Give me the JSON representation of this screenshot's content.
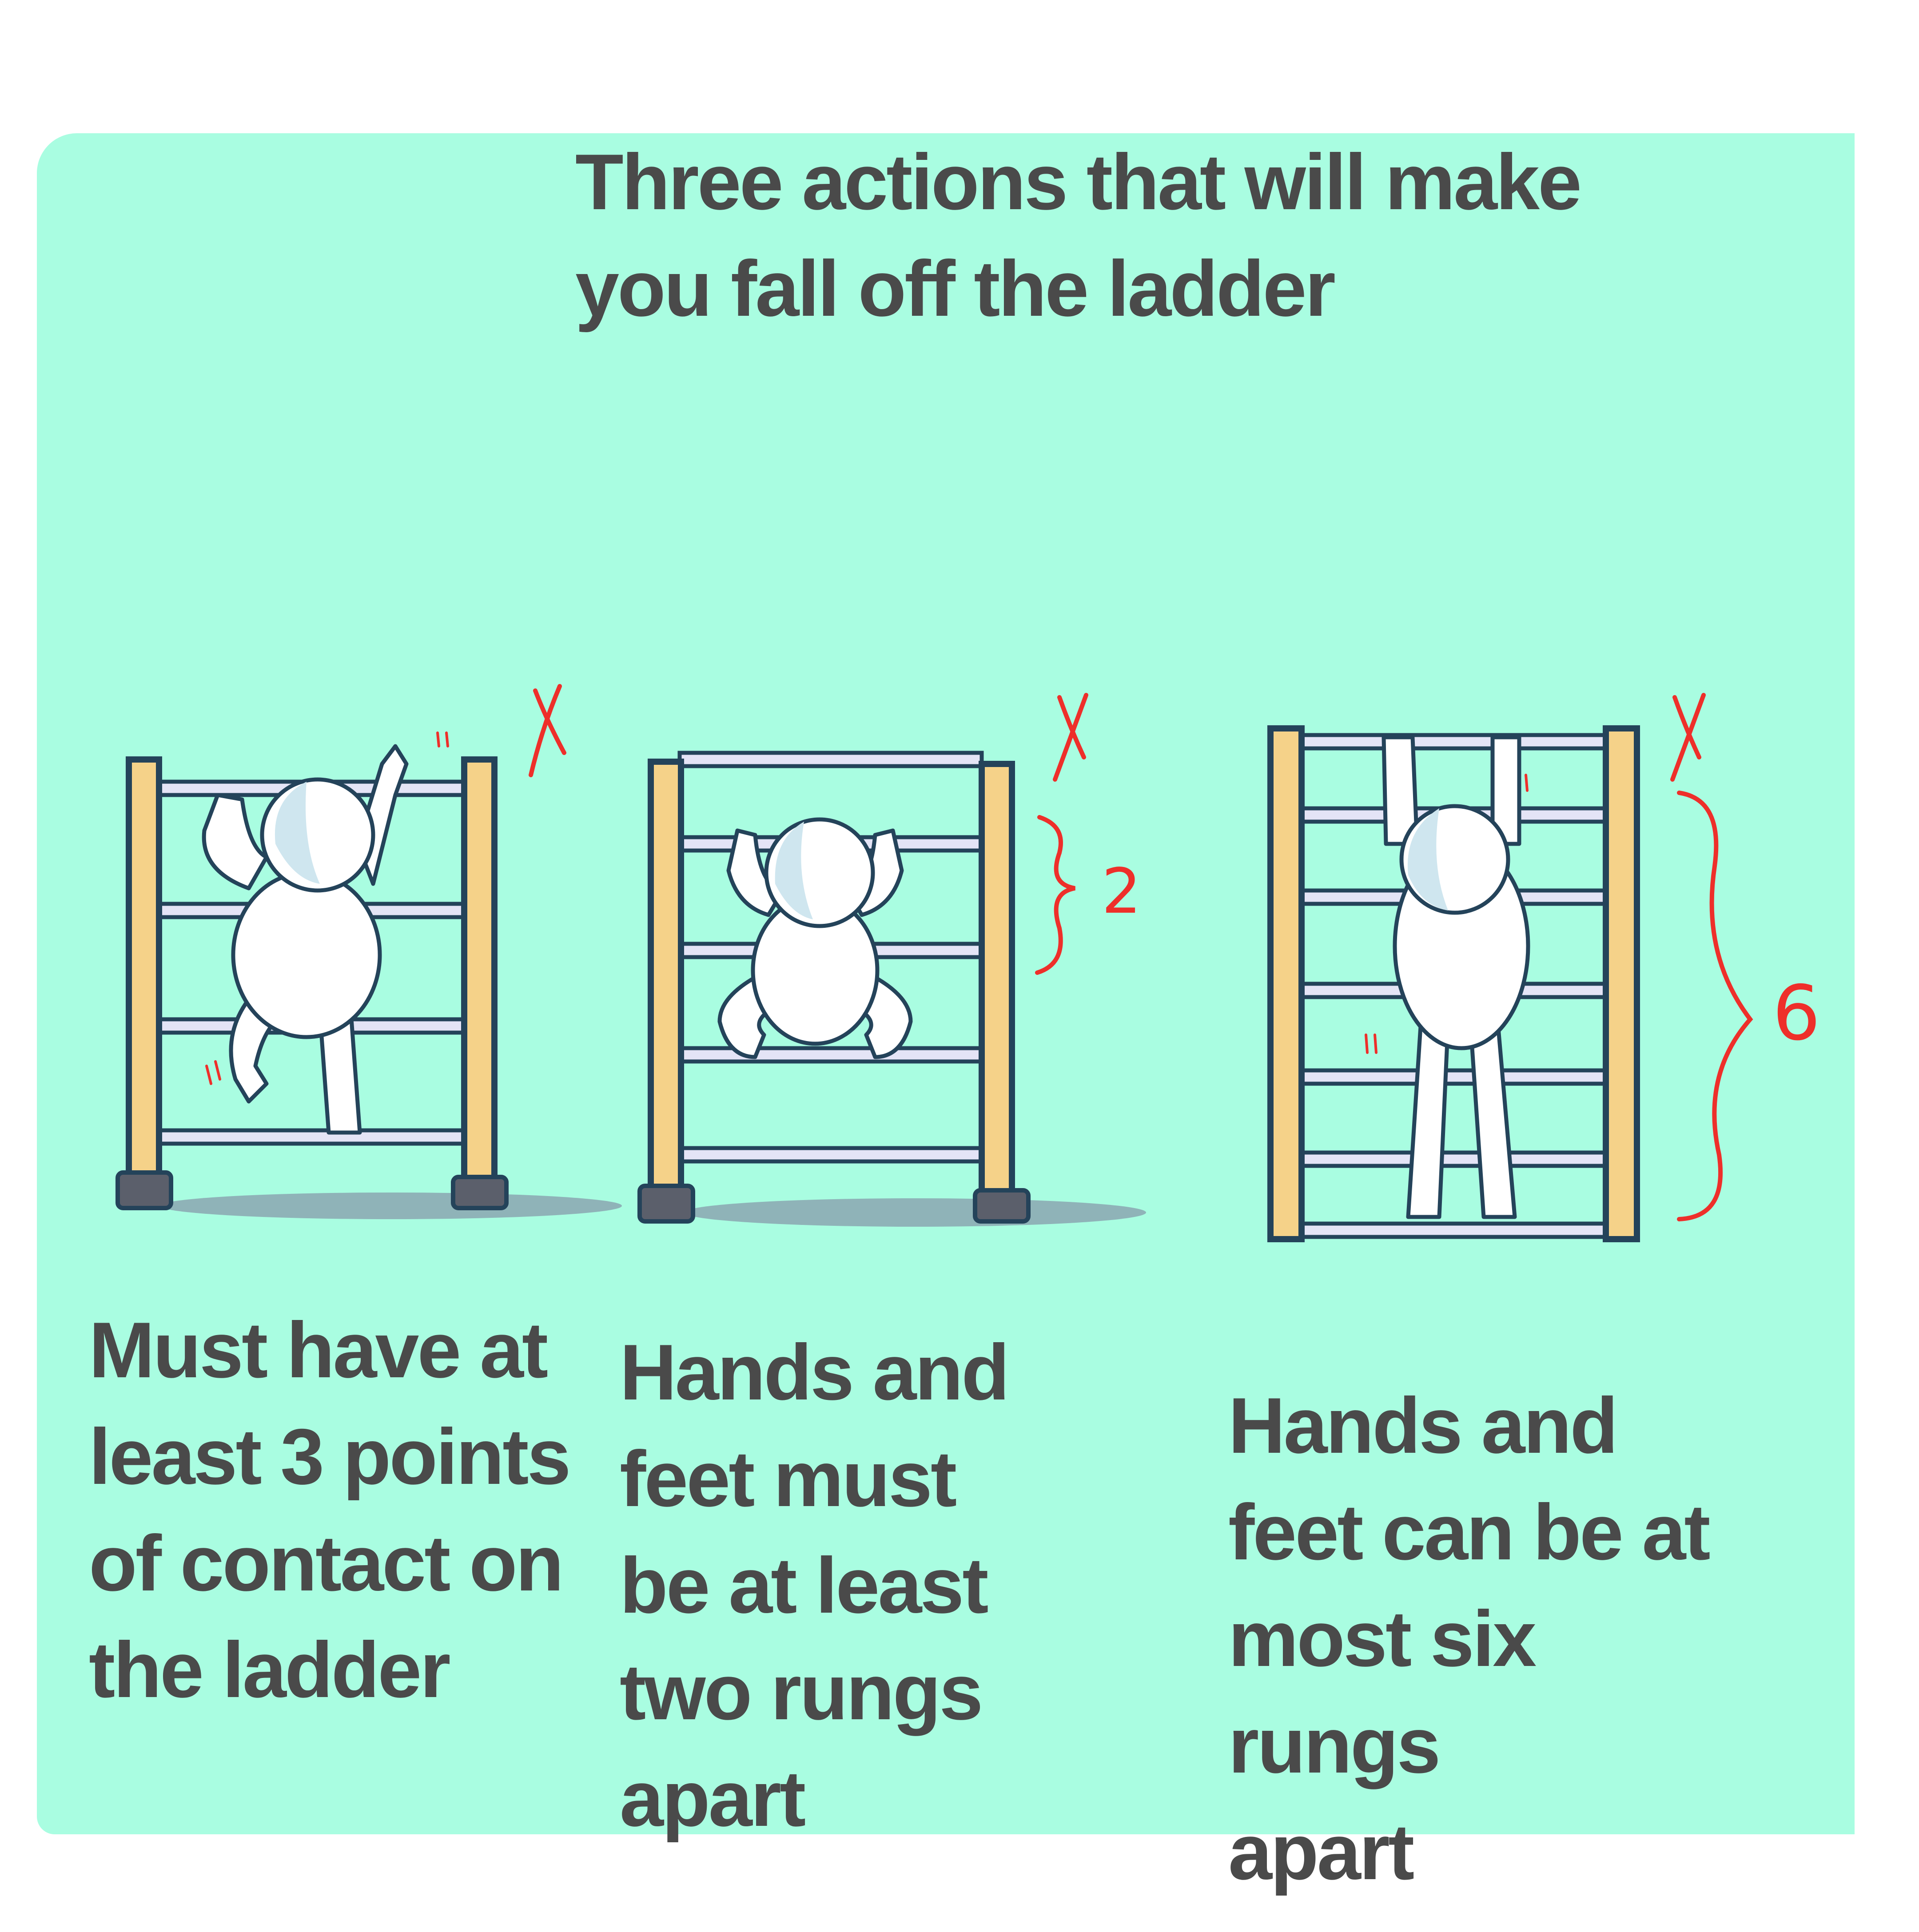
{
  "colors": {
    "panel": "#a9fde1",
    "rail": "#f5d289",
    "outline": "#24435a",
    "rung": "#e4e4f6",
    "figure": "#ffffff",
    "figure_shade": "#cfe6ef",
    "mark": "#ee2f2a",
    "text": "#4a4a4a",
    "shadow": "#8fb3b8"
  },
  "title": "Three actions that will make\nyou fall off the ladder",
  "panels": [
    {
      "caption": "Must have at\nleast 3 points\nof contact on\nthe ladder",
      "mark": "X"
    },
    {
      "caption": "Hands and\nfeet must\nbe at least\ntwo rungs\napart",
      "mark": "X",
      "count": "2"
    },
    {
      "caption": "Hands and\nfeet can be at\nmost six rungs\napart",
      "mark": "X",
      "count": "6"
    }
  ],
  "icons": [
    "climber-figure",
    "ladder",
    "x-mark",
    "curly-brace"
  ]
}
